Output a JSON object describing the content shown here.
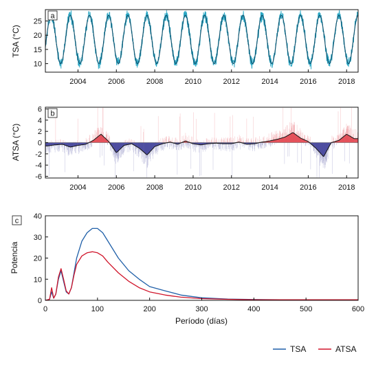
{
  "panels": {
    "a": {
      "label": "a",
      "ylabel": "TSA (°C)",
      "ylim": [
        7,
        29
      ],
      "yticks": [
        "10",
        "15",
        "20",
        "25"
      ],
      "xticks": [
        "2004",
        "2006",
        "2008",
        "2010",
        "2012",
        "2014",
        "2016",
        "2018"
      ],
      "colors": {
        "daily": "#2aa7c4",
        "smooth": "#12506b"
      }
    },
    "b": {
      "label": "b",
      "ylabel": "ATSA (°C)",
      "ylim": [
        -6.3,
        6.3
      ],
      "yticks": [
        "-6",
        "-4",
        "-2",
        "0",
        "2",
        "4",
        "6"
      ],
      "xticks": [
        "2004",
        "2006",
        "2008",
        "2010",
        "2012",
        "2014",
        "2016",
        "2018"
      ],
      "colors": {
        "positive": "#e0404a",
        "negative": "#3b3b96",
        "smooth": "#111111"
      }
    },
    "c": {
      "label": "c",
      "ylabel": "Potencia",
      "xlabel": "Período (días)",
      "yticks": [
        "0",
        "10",
        "20",
        "30",
        "40"
      ],
      "xticks": [
        "0",
        "100",
        "200",
        "300",
        "400",
        "500",
        "600"
      ]
    }
  },
  "legend": {
    "tsa": {
      "label": "TSA",
      "color": "#1f5fa8"
    },
    "atsa": {
      "label": "ATSA",
      "color": "#d0142a"
    }
  },
  "chart_data": [
    {
      "type": "line",
      "panel": "a",
      "xlabel": "",
      "ylabel": "TSA (°C)",
      "xlim": [
        2002.3,
        2018.6
      ],
      "ylim": [
        7,
        29
      ],
      "seasonal_cycle": {
        "min_c": 10,
        "max_c": 27,
        "period_years": 1
      }
    },
    {
      "type": "area",
      "panel": "b",
      "xlabel": "",
      "ylabel": "ATSA (°C)",
      "xlim": [
        2002.3,
        2018.6
      ],
      "ylim": [
        -6.3,
        6.3
      ],
      "smoothed_anomaly": {
        "x": [
          2002.4,
          2002.8,
          2003.2,
          2003.6,
          2004.0,
          2004.4,
          2004.8,
          2005.2,
          2005.6,
          2006.0,
          2006.4,
          2006.8,
          2007.2,
          2007.6,
          2008.0,
          2008.4,
          2008.8,
          2009.2,
          2009.6,
          2010.0,
          2010.4,
          2010.8,
          2011.2,
          2011.6,
          2012.0,
          2012.4,
          2012.8,
          2013.2,
          2013.6,
          2014.0,
          2014.4,
          2014.8,
          2015.2,
          2015.6,
          2016.0,
          2016.4,
          2016.8,
          2017.2,
          2017.6,
          2018.0,
          2018.4
        ],
        "y": [
          -0.6,
          -0.4,
          -0.3,
          -0.8,
          -0.5,
          -0.3,
          0.4,
          1.5,
          0.2,
          -1.8,
          -0.5,
          -0.2,
          -1.0,
          -2.2,
          -0.7,
          -0.2,
          0.1,
          -0.3,
          0.3,
          -0.2,
          -0.4,
          -0.2,
          -0.1,
          -0.2,
          -0.2,
          0.1,
          -0.3,
          -0.2,
          0.1,
          0.3,
          0.6,
          1.0,
          1.8,
          0.8,
          0.2,
          -1.0,
          -2.5,
          0.0,
          0.4,
          1.5,
          0.7
        ]
      }
    },
    {
      "type": "line",
      "panel": "c",
      "xlabel": "Período (días)",
      "ylabel": "Potencia",
      "xlim": [
        0,
        600
      ],
      "ylim": [
        0,
        40
      ],
      "series": [
        {
          "name": "TSA",
          "x": [
            0,
            8,
            12,
            16,
            20,
            25,
            30,
            35,
            40,
            45,
            50,
            55,
            60,
            70,
            80,
            90,
            100,
            110,
            120,
            140,
            160,
            180,
            200,
            230,
            260,
            300,
            350,
            400,
            450,
            500,
            550,
            600
          ],
          "y": [
            0,
            0.5,
            4,
            1,
            3,
            10,
            14,
            9,
            4,
            3,
            6,
            13,
            20,
            28,
            32,
            34,
            34,
            32,
            28,
            20,
            14,
            10,
            6.5,
            4.5,
            2.5,
            1.2,
            0.6,
            0.4,
            0.3,
            0.3,
            0.3,
            0.3
          ]
        },
        {
          "name": "ATSA",
          "x": [
            0,
            8,
            12,
            16,
            20,
            25,
            30,
            35,
            40,
            45,
            50,
            55,
            60,
            70,
            80,
            90,
            100,
            110,
            120,
            140,
            160,
            180,
            200,
            230,
            260,
            300,
            350,
            400,
            450,
            500,
            550,
            600
          ],
          "y": [
            0,
            0.5,
            6,
            1,
            3,
            11,
            15,
            10,
            4.5,
            3,
            6,
            12,
            17,
            21,
            22.5,
            23,
            22.5,
            21,
            18,
            13,
            9,
            6,
            4,
            2.5,
            1.5,
            0.8,
            0.5,
            0.3,
            0.3,
            0.3,
            0.3,
            0.3
          ]
        }
      ]
    }
  ]
}
